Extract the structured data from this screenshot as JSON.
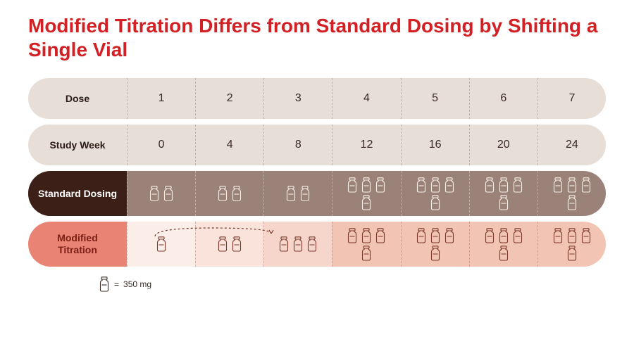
{
  "title": "Modified Titration Differs from Standard Dosing by Shifting a Single Vial",
  "colors": {
    "title": "#d32024",
    "bg_light": "#e7ded8",
    "standard_bg": "#9a8279",
    "standard_label_bg": "#3c1f17",
    "standard_vial": "#f8efe8",
    "modified_label_bg": "#e98374",
    "modified_label_text": "#7a2015",
    "modified_vial": "#7a362a",
    "modified_shades": [
      "#fbeee9",
      "#f9e3db",
      "#f6d6cb",
      "#f2c4b4",
      "#f2c4b4",
      "#f2c4b4",
      "#f2c4b4"
    ]
  },
  "columns": 7,
  "dose": {
    "label": "Dose",
    "values": [
      "1",
      "2",
      "3",
      "4",
      "5",
      "6",
      "7"
    ]
  },
  "week": {
    "label": "Study Week",
    "values": [
      "0",
      "4",
      "8",
      "12",
      "16",
      "20",
      "24"
    ]
  },
  "standard": {
    "label": "Standard Dosing",
    "vials": [
      2,
      2,
      2,
      4,
      4,
      4,
      4
    ]
  },
  "modified": {
    "label": "Modified Titration",
    "vials": [
      1,
      2,
      3,
      4,
      4,
      4,
      4
    ],
    "shift_from_col": 0,
    "shift_to_col": 2
  },
  "footnote": {
    "equals": "=",
    "text": "350 mg"
  }
}
